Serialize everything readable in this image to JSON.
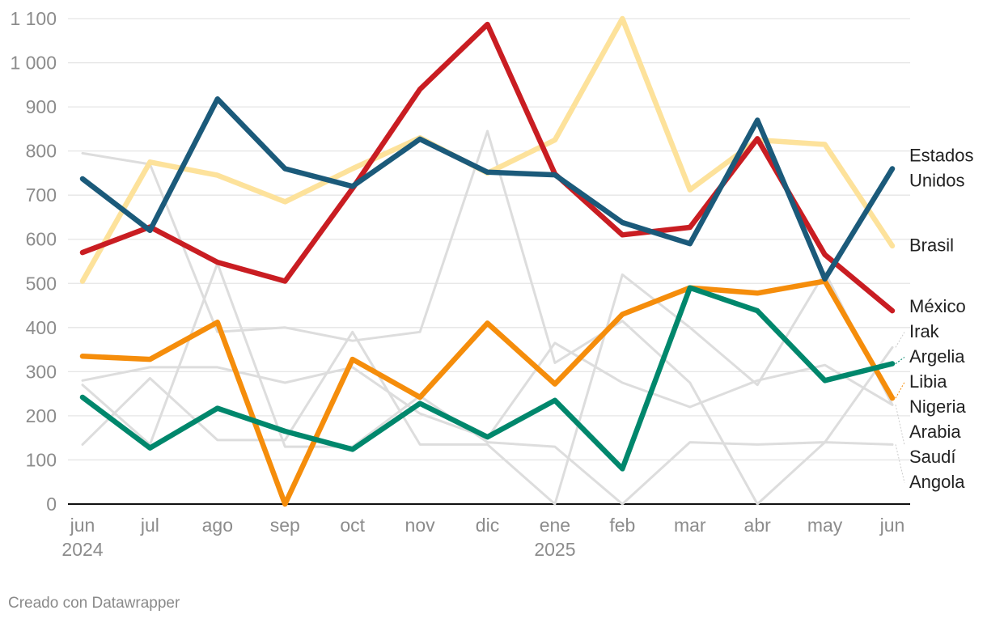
{
  "chart_data": {
    "type": "line",
    "title": "",
    "xlabel": "",
    "ylabel": "",
    "ylim": [
      0,
      1100
    ],
    "yticks": [
      0,
      100,
      200,
      300,
      400,
      500,
      600,
      700,
      800,
      900,
      1000,
      1100
    ],
    "ytick_labels": [
      "0",
      "100",
      "200",
      "300",
      "400",
      "500",
      "600",
      "700",
      "800",
      "900",
      "1 000",
      "1 100"
    ],
    "grid": "horizontal",
    "legend": "direct labels at right end of lines",
    "x_labels": [
      "jun",
      "jul",
      "ago",
      "sep",
      "oct",
      "nov",
      "dic",
      "ene",
      "feb",
      "mar",
      "abr",
      "may",
      "jun"
    ],
    "x_year_labels": [
      {
        "index": 0,
        "label": "2024"
      },
      {
        "index": 7,
        "label": "2025"
      }
    ],
    "series": [
      {
        "name": "Irak",
        "color": "#dddddd",
        "highlight": false,
        "label_lines": [
          "Irak"
        ],
        "values": [
          795,
          770,
          390,
          400,
          370,
          390,
          845,
          320,
          415,
          275,
          0,
          140,
          355
        ]
      },
      {
        "name": "Nigeria",
        "color": "#dddddd",
        "highlight": false,
        "label_lines": [
          "Nigeria"
        ],
        "values": [
          280,
          310,
          310,
          275,
          310,
          205,
          150,
          365,
          275,
          220,
          280,
          315,
          225
        ]
      },
      {
        "name": "Arabia Saudí",
        "color": "#dddddd",
        "highlight": false,
        "label_lines": [
          "Arabia",
          "Saudí"
        ],
        "values": [
          135,
          285,
          145,
          145,
          390,
          135,
          135,
          0,
          520,
          400,
          270,
          525,
          225
        ]
      },
      {
        "name": "Angola",
        "color": "#dddddd",
        "highlight": false,
        "label_lines": [
          "Angola"
        ],
        "values": [
          270,
          135,
          545,
          130,
          130,
          245,
          140,
          130,
          0,
          140,
          135,
          140,
          135
        ]
      },
      {
        "name": "Brasil",
        "color": "#fde29b",
        "highlight": true,
        "label_lines": [
          "Brasil"
        ],
        "values": [
          505,
          775,
          745,
          685,
          760,
          830,
          750,
          825,
          1100,
          712,
          825,
          815,
          585
        ]
      },
      {
        "name": "Libia",
        "color": "#f58d0b",
        "highlight": true,
        "label_lines": [
          "Libia"
        ],
        "values": [
          335,
          328,
          412,
          0,
          328,
          242,
          410,
          272,
          430,
          490,
          478,
          505,
          240
        ]
      },
      {
        "name": "Argelia",
        "color": "#00876c",
        "highlight": true,
        "label_lines": [
          "Argelia"
        ],
        "values": [
          242,
          127,
          217,
          165,
          124,
          228,
          152,
          235,
          80,
          490,
          438,
          280,
          318
        ]
      },
      {
        "name": "México",
        "color": "#c91d22",
        "highlight": true,
        "label_lines": [
          "México"
        ],
        "values": [
          570,
          628,
          548,
          505,
          715,
          940,
          1087,
          748,
          610,
          627,
          828,
          565,
          438
        ]
      },
      {
        "name": "Estados Unidos",
        "color": "#1b5a7a",
        "highlight": true,
        "label_lines": [
          "Estados",
          "Unidos"
        ],
        "values": [
          737,
          620,
          918,
          760,
          720,
          827,
          752,
          746,
          638,
          590,
          870,
          510,
          760
        ]
      }
    ]
  },
  "footer": {
    "credit": "Creado con Datawrapper"
  }
}
